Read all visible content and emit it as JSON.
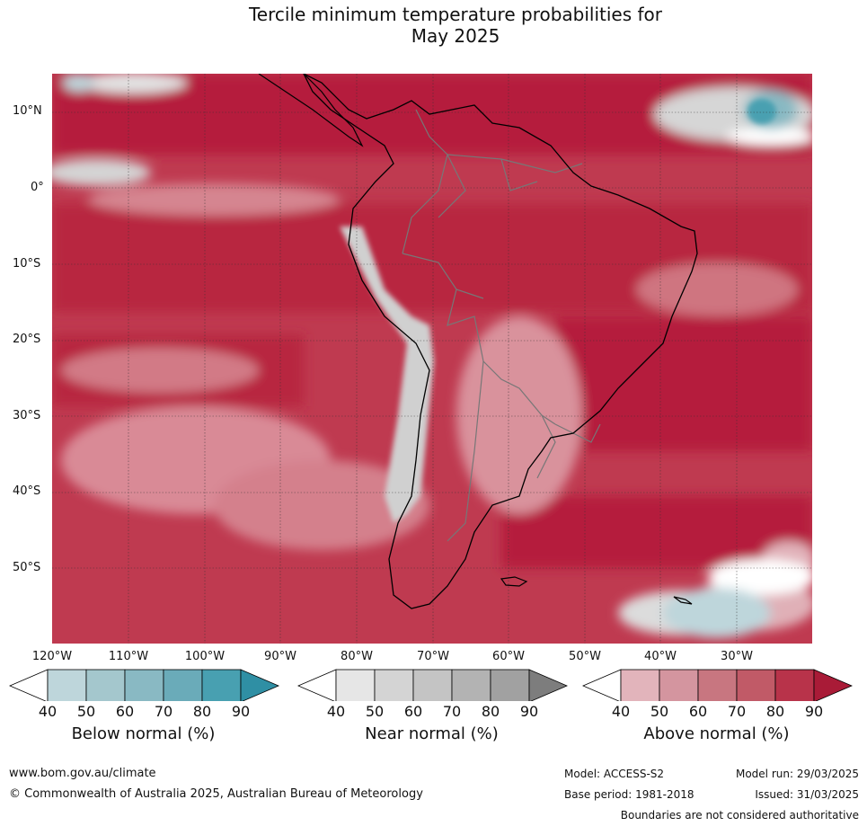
{
  "title_line1": "Tercile minimum temperature probabilities for",
  "title_line2": "May 2025",
  "lat_labels": [
    "10°N",
    "0°",
    "10°S",
    "20°S",
    "30°S",
    "40°S",
    "50°S"
  ],
  "lon_labels": [
    "120°W",
    "110°W",
    "100°W",
    "90°W",
    "80°W",
    "70°W",
    "60°W",
    "50°W",
    "40°W",
    "30°W"
  ],
  "colorbars": [
    {
      "title": "Below normal (%)",
      "ticks": [
        "40",
        "50",
        "60",
        "70",
        "80",
        "90"
      ],
      "colors": [
        "#bed6db",
        "#a4c7cd",
        "#89b9c3",
        "#6aabb9",
        "#48a0b1",
        "#2f8fa4"
      ]
    },
    {
      "title": "Near normal (%)",
      "ticks": [
        "40",
        "50",
        "60",
        "70",
        "80",
        "90"
      ],
      "colors": [
        "#e6e6e6",
        "#d4d4d4",
        "#c4c4c4",
        "#b3b3b3",
        "#a1a1a1",
        "#7d7d7d"
      ]
    },
    {
      "title": "Above normal (%)",
      "ticks": [
        "40",
        "50",
        "60",
        "70",
        "80",
        "90"
      ],
      "colors": [
        "#e2b4bb",
        "#d4959f",
        "#c87680",
        "#c15a67",
        "#b8334a",
        "#a91b37"
      ]
    }
  ],
  "footer": {
    "website": "www.bom.gov.au/climate",
    "copyright": "© Commonwealth of Australia 2025, Australian Bureau of Meteorology",
    "model": "Model: ACCESS-S2",
    "base_period": "Base period: 1981-2018",
    "model_run": "Model run: 29/03/2025",
    "issued": "Issued: 31/03/2025",
    "disclaimer": "Boundaries are not considered authoritative"
  }
}
